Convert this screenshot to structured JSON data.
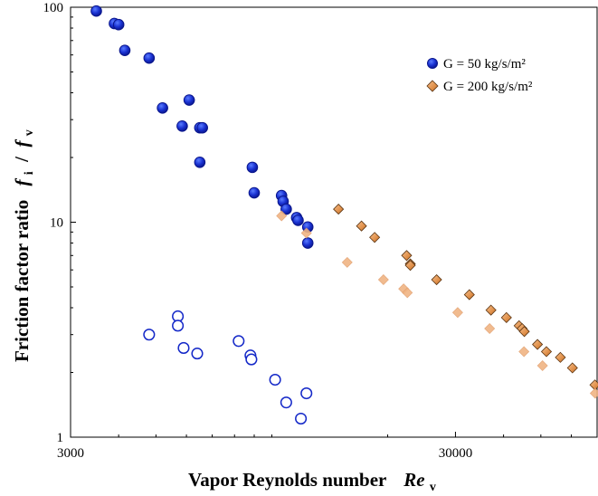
{
  "chart_data": {
    "type": "scatter",
    "xscale": "log",
    "yscale": "log",
    "xlim": [
      3000,
      70000
    ],
    "ylim": [
      1,
      100
    ],
    "xticks": [
      3000,
      30000
    ],
    "xtick_labels": [
      "3000",
      "30000"
    ],
    "yticks": [
      1,
      10,
      100
    ],
    "ytick_labels": [
      "1",
      "10",
      "100"
    ],
    "xlabel": {
      "main": "Vapor Reynolds number",
      "symbol": "Re",
      "sub": "v"
    },
    "ylabel": {
      "main": "Friction factor ratio",
      "sym1": "f",
      "sub1": "i",
      "sep": " / ",
      "sym2": "f",
      "sub2": "v"
    },
    "grid": false,
    "legend_position": "top-right",
    "series": [
      {
        "name": "G = 50 kg/s/m²",
        "marker": "circle",
        "filled": true,
        "color": "#1428c8",
        "points": [
          [
            3500,
            96
          ],
          [
            3900,
            84
          ],
          [
            4000,
            83
          ],
          [
            4150,
            63
          ],
          [
            4800,
            58
          ],
          [
            5200,
            34
          ],
          [
            6100,
            37
          ],
          [
            5850,
            28
          ],
          [
            6500,
            27.5
          ],
          [
            6600,
            27.5
          ],
          [
            6500,
            19
          ],
          [
            8900,
            18
          ],
          [
            9000,
            13.7
          ],
          [
            10600,
            13.3
          ],
          [
            10700,
            12.5
          ],
          [
            10900,
            11.5
          ],
          [
            11600,
            10.5
          ],
          [
            11700,
            10.2
          ],
          [
            12400,
            9.5
          ],
          [
            12400,
            8
          ]
        ]
      },
      {
        "name": "G = 50 kg/s/m² (open)",
        "marker": "circle",
        "filled": false,
        "color": "#1428c8",
        "points": [
          [
            4800,
            3
          ],
          [
            5700,
            3.65
          ],
          [
            5700,
            3.3
          ],
          [
            5900,
            2.6
          ],
          [
            6400,
            2.45
          ],
          [
            8200,
            2.8
          ],
          [
            8800,
            2.4
          ],
          [
            8850,
            2.3
          ],
          [
            10200,
            1.85
          ],
          [
            10900,
            1.45
          ],
          [
            11900,
            1.22
          ],
          [
            12300,
            1.6
          ]
        ]
      },
      {
        "name": "G = 200 kg/s/m²",
        "marker": "diamond",
        "filled": true,
        "color": "#e0904a",
        "points": [
          [
            14900,
            11.5
          ],
          [
            17100,
            9.6
          ],
          [
            18500,
            8.5
          ],
          [
            22400,
            7
          ],
          [
            22900,
            6.4
          ],
          [
            22900,
            6.3
          ],
          [
            26800,
            5.4
          ],
          [
            32600,
            4.6
          ],
          [
            37100,
            3.9
          ],
          [
            40700,
            3.6
          ],
          [
            43900,
            3.3
          ],
          [
            44700,
            3.2
          ],
          [
            45300,
            3.1
          ],
          [
            49000,
            2.7
          ],
          [
            51700,
            2.5
          ],
          [
            56200,
            2.35
          ],
          [
            60400,
            2.1
          ],
          [
            69100,
            1.75
          ]
        ]
      },
      {
        "name": "G = 200 kg/s/m² (open)",
        "marker": "diamond",
        "filled": false,
        "color": "#f0b483",
        "points": [
          [
            10600,
            10.7
          ],
          [
            12300,
            8.9
          ],
          [
            15700,
            6.5
          ],
          [
            19500,
            5.4
          ],
          [
            22000,
            4.9
          ],
          [
            22500,
            4.7
          ],
          [
            30400,
            3.8
          ],
          [
            36800,
            3.2
          ],
          [
            45200,
            2.5
          ],
          [
            50500,
            2.15
          ],
          [
            69200,
            1.6
          ]
        ]
      }
    ],
    "legend": [
      {
        "label": "G = 50 kg/s/m²",
        "marker": "circle",
        "filled": true,
        "color": "#1428c8"
      },
      {
        "label": "G = 200 kg/s/m²",
        "marker": "diamond",
        "filled": true,
        "color": "#e0904a"
      }
    ]
  }
}
